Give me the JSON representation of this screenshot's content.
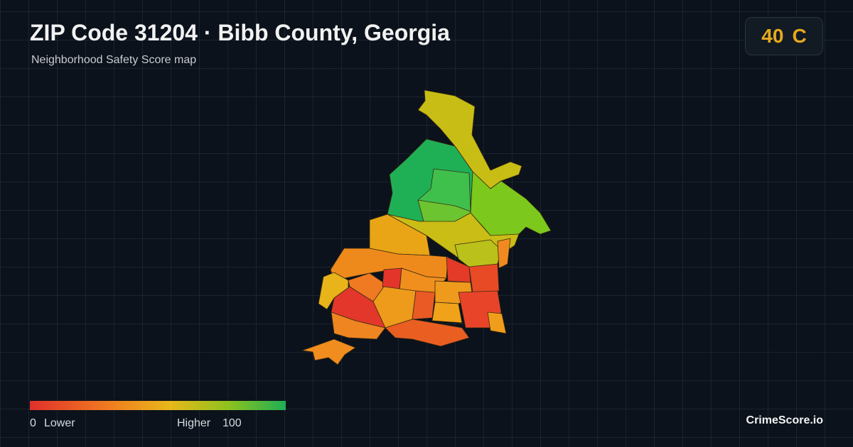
{
  "header": {
    "title": "ZIP Code 31204 · Bibb County, Georgia",
    "subtitle": "Neighborhood Safety Score map"
  },
  "score": {
    "value": 40,
    "grade": "C"
  },
  "legend": {
    "min": 0,
    "min_label": "Lower",
    "max_label": "Higher",
    "max": 100
  },
  "footer": {
    "brand": "CrimeScore.io"
  }
}
